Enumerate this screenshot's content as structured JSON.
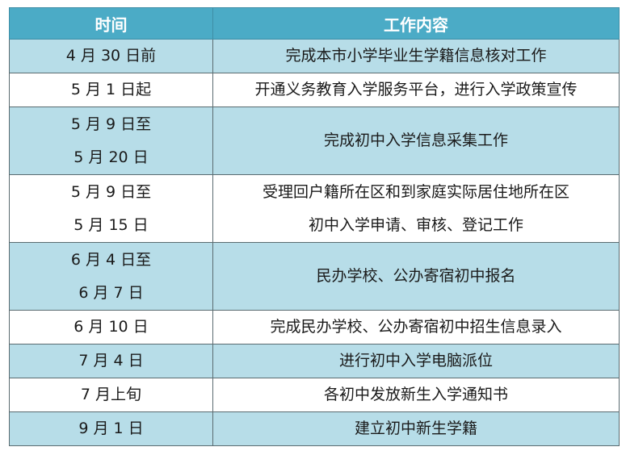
{
  "table": {
    "headers": [
      "时间",
      "工作内容"
    ],
    "rows": [
      {
        "time": [
          "4 月 30 日前"
        ],
        "content": [
          "完成本市小学毕业生学籍信息核对工作"
        ]
      },
      {
        "time": [
          "5 月 1 日起"
        ],
        "content": [
          "开通义务教育入学服务平台，进行入学政策宣传"
        ]
      },
      {
        "time": [
          "5 月 9 日至",
          "5 月 20 日"
        ],
        "content": [
          "完成初中入学信息采集工作"
        ]
      },
      {
        "time": [
          "5 月 9 日至",
          "5 月 15 日"
        ],
        "content": [
          "受理回户籍所在区和到家庭实际居住地所在区",
          "初中入学申请、审核、登记工作"
        ]
      },
      {
        "time": [
          "6 月 4 日至",
          "6 月 7 日"
        ],
        "content": [
          "民办学校、公办寄宿初中报名"
        ]
      },
      {
        "time": [
          "6 月 10 日"
        ],
        "content": [
          "完成民办学校、公办寄宿初中招生信息录入"
        ]
      },
      {
        "time": [
          "7 月 4 日"
        ],
        "content": [
          "进行初中入学电脑派位"
        ]
      },
      {
        "time": [
          "7 月上旬"
        ],
        "content": [
          "各初中发放新生入学通知书"
        ]
      },
      {
        "time": [
          "9 月 1 日"
        ],
        "content": [
          "建立初中新生学籍"
        ]
      }
    ]
  },
  "colors": {
    "header": "#4babc6",
    "band": "#b7dde8",
    "white": "#ffffff"
  }
}
